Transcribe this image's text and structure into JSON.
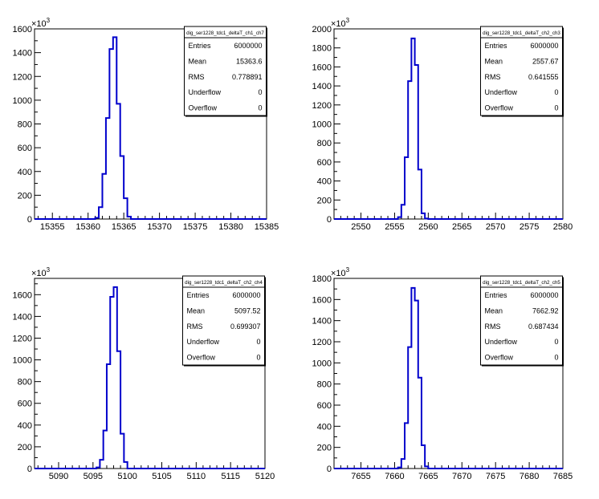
{
  "chart_data": [
    {
      "type": "bar",
      "style": "histogram-step",
      "title": "",
      "xlabel": "",
      "ylabel": "",
      "y_multiplier_label": "×10³",
      "xlim": [
        15352.5,
        15385
      ],
      "ylim": [
        0,
        1600
      ],
      "x_ticks": [
        15355,
        15360,
        15365,
        15370,
        15375,
        15380,
        15385
      ],
      "y_ticks": [
        0,
        200,
        400,
        600,
        800,
        1000,
        1200,
        1400,
        1600
      ],
      "bin_width": 0.5,
      "bins_x": [
        15361.0,
        15361.5,
        15362.0,
        15362.5,
        15363.0,
        15363.5,
        15364.0,
        15364.5,
        15365.0,
        15365.5
      ],
      "bins_y": [
        10,
        100,
        380,
        850,
        1430,
        1530,
        970,
        530,
        175,
        20
      ],
      "color": "#0000cc",
      "stats": {
        "name": "dig_ser1228_tdc1_deltaT_ch1_ch7",
        "rows": [
          {
            "label": "Entries",
            "value": "6000000"
          },
          {
            "label": "Mean",
            "value": "15363.6"
          },
          {
            "label": "RMS",
            "value": "0.778891"
          },
          {
            "label": "Underflow",
            "value": "0"
          },
          {
            "label": "Overflow",
            "value": "0"
          }
        ]
      }
    },
    {
      "type": "bar",
      "style": "histogram-step",
      "title": "",
      "xlabel": "",
      "ylabel": "",
      "y_multiplier_label": "×10³",
      "xlim": [
        2546,
        2580
      ],
      "ylim": [
        0,
        2000
      ],
      "x_ticks": [
        2550,
        2555,
        2560,
        2565,
        2570,
        2575,
        2580
      ],
      "y_ticks": [
        0,
        200,
        400,
        600,
        800,
        1000,
        1200,
        1400,
        1600,
        1800,
        2000
      ],
      "bin_width": 0.5,
      "bins_x": [
        2555.5,
        2556.0,
        2556.5,
        2557.0,
        2557.5,
        2558.0,
        2558.5,
        2559.0,
        2559.5
      ],
      "bins_y": [
        20,
        150,
        650,
        1450,
        1900,
        1620,
        520,
        60,
        5
      ],
      "color": "#0000cc",
      "stats": {
        "name": "dig_ser1228_tdc1_deltaT_ch2_ch3",
        "rows": [
          {
            "label": "Entries",
            "value": "6000000"
          },
          {
            "label": "Mean",
            "value": "2557.67"
          },
          {
            "label": "RMS",
            "value": "0.641555"
          },
          {
            "label": "Underflow",
            "value": "0"
          },
          {
            "label": "Overflow",
            "value": "0"
          }
        ]
      }
    },
    {
      "type": "bar",
      "style": "histogram-step",
      "title": "",
      "xlabel": "",
      "ylabel": "",
      "y_multiplier_label": "×10³",
      "xlim": [
        5086.5,
        5120
      ],
      "ylim": [
        0,
        1750
      ],
      "x_ticks": [
        5090,
        5095,
        5100,
        5105,
        5110,
        5115,
        5120
      ],
      "y_ticks": [
        0,
        200,
        400,
        600,
        800,
        1000,
        1200,
        1400,
        1600
      ],
      "bin_width": 0.5,
      "bins_x": [
        5095.5,
        5096.0,
        5096.5,
        5097.0,
        5097.5,
        5098.0,
        5098.5,
        5099.0,
        5099.5
      ],
      "bins_y": [
        10,
        80,
        350,
        960,
        1580,
        1670,
        1080,
        320,
        60
      ],
      "color": "#0000cc",
      "stats": {
        "name": "dig_ser1228_tdc1_deltaT_ch2_ch4",
        "rows": [
          {
            "label": "Entries",
            "value": "6000000"
          },
          {
            "label": "Mean",
            "value": "5097.52"
          },
          {
            "label": "RMS",
            "value": "0.699307"
          },
          {
            "label": "Underflow",
            "value": "0"
          },
          {
            "label": "Overflow",
            "value": "0"
          }
        ]
      }
    },
    {
      "type": "bar",
      "style": "histogram-step",
      "title": "",
      "xlabel": "",
      "ylabel": "",
      "y_multiplier_label": "×10³",
      "xlim": [
        7651,
        7685
      ],
      "ylim": [
        0,
        1800
      ],
      "x_ticks": [
        7655,
        7660,
        7665,
        7670,
        7675,
        7680,
        7685
      ],
      "y_ticks": [
        0,
        200,
        400,
        600,
        800,
        1000,
        1200,
        1400,
        1600,
        1800
      ],
      "bin_width": 0.5,
      "bins_x": [
        7660.5,
        7661.0,
        7661.5,
        7662.0,
        7662.5,
        7663.0,
        7663.5,
        7664.0,
        7664.5
      ],
      "bins_y": [
        10,
        90,
        430,
        1150,
        1710,
        1590,
        860,
        220,
        20
      ],
      "color": "#0000cc",
      "stats": {
        "name": "dig_ser1228_tdc1_deltaT_ch2_ch5",
        "rows": [
          {
            "label": "Entries",
            "value": "6000000"
          },
          {
            "label": "Mean",
            "value": "7662.92"
          },
          {
            "label": "RMS",
            "value": "0.687434"
          },
          {
            "label": "Underflow",
            "value": "0"
          },
          {
            "label": "Overflow",
            "value": "0"
          }
        ]
      }
    }
  ]
}
